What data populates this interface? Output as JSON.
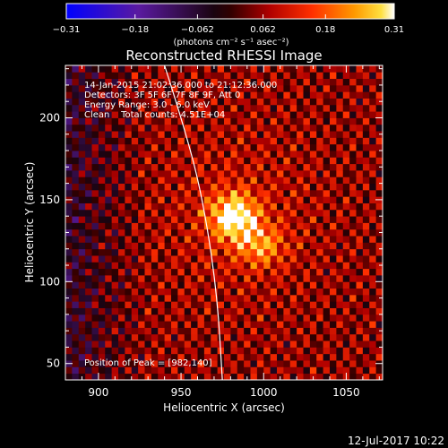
{
  "chart_data": {
    "type": "heatmap",
    "title": "Reconstructed RHESSI Image",
    "xlabel": "Heliocentric X (arcsec)",
    "ylabel": "Heliocentric Y (arcsec)",
    "xlim": [
      880,
      1072
    ],
    "ylim": [
      40,
      232
    ],
    "x_ticks": [
      900,
      950,
      1000,
      1050
    ],
    "y_ticks": [
      50,
      100,
      150,
      200
    ],
    "colorbar": {
      "label": "(photons cm⁻² s⁻¹ asec⁻²)",
      "range": [
        -0.31,
        0.31
      ],
      "tick_values": [
        -0.31,
        -0.18,
        -0.062,
        0.062,
        0.18,
        0.31
      ],
      "tick_labels": [
        "−0.31",
        "−0.18",
        "−0.062",
        "0.062",
        "0.18",
        "0.31"
      ],
      "colormap": "blue-purple-black-red-orange-yellow-white"
    },
    "annotations": [
      "14-Jan-2015 21:02:36.000 to 21:12:36.000",
      "Detectors: 3F 5F 6F 7F 8F 9F, Att 0",
      "Energy Range: 3.0 - 6.0 keV",
      "Clean    Total counts: 4.51E+04"
    ],
    "peak_label": "Position of Peak = [982,140]",
    "peak": {
      "x": 982,
      "y": 140,
      "value": 0.31
    },
    "secondary_source": {
      "x": 998,
      "y": 122
    },
    "stripe_angle_deg": 62,
    "limb_curve": [
      [
        940,
        232
      ],
      [
        955,
        185
      ],
      [
        965,
        140
      ],
      [
        972,
        90
      ],
      [
        975,
        40
      ]
    ],
    "date_stamp": "12-Jul-2017 10:22"
  }
}
